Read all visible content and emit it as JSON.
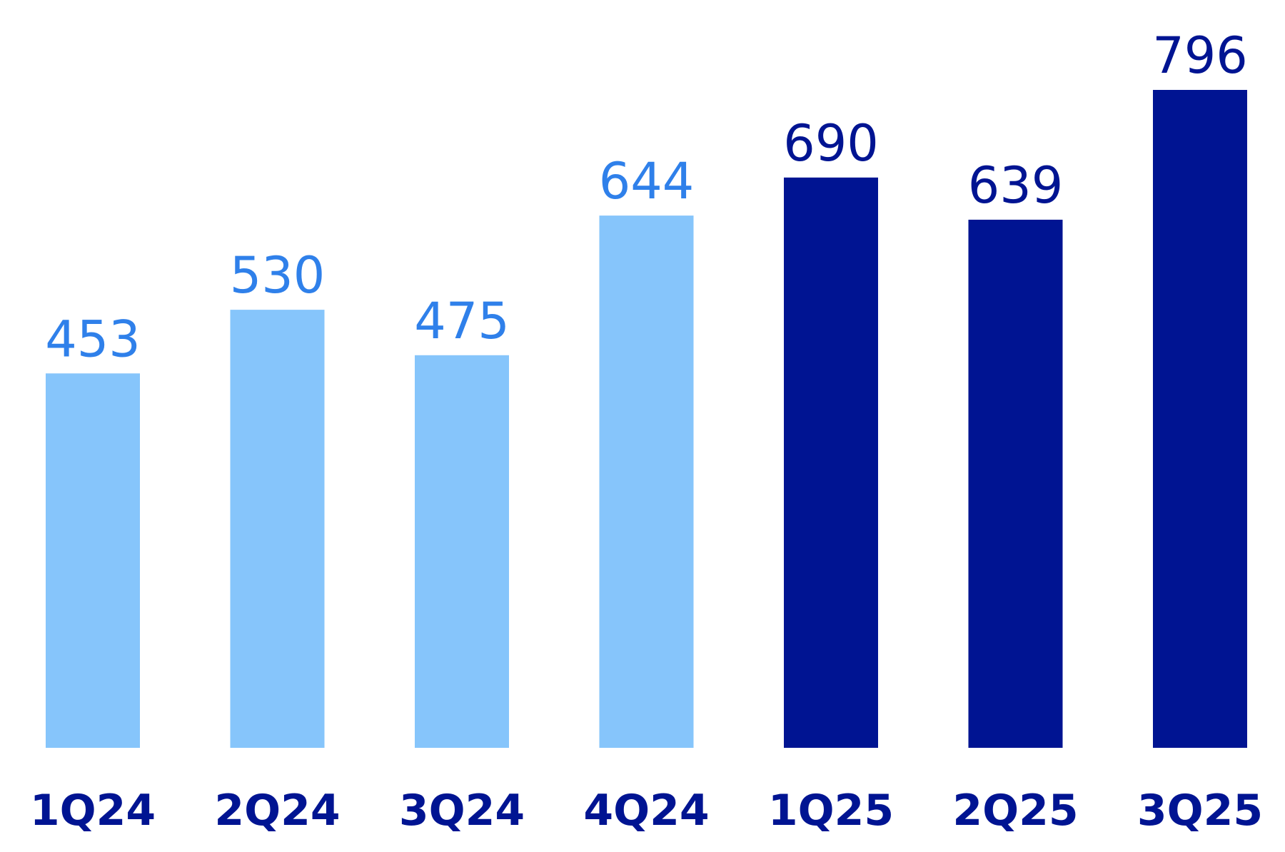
{
  "chart_data": {
    "type": "bar",
    "title": "",
    "xlabel": "",
    "ylabel": "",
    "categories": [
      "1Q24",
      "2Q24",
      "3Q24",
      "4Q24",
      "1Q25",
      "2Q25",
      "3Q25"
    ],
    "values": [
      453,
      530,
      475,
      644,
      690,
      639,
      796
    ],
    "ylim": [
      0,
      796
    ],
    "grid": false,
    "legend": "none",
    "colors": {
      "bar_2024": "#86c5fb",
      "bar_2025": "#001492",
      "label_2024": "#2f80ea",
      "label_2025": "#001492",
      "tick": "#001492"
    },
    "bar_color_keys": [
      "2024",
      "2024",
      "2024",
      "2024",
      "2025",
      "2025",
      "2025"
    ]
  }
}
